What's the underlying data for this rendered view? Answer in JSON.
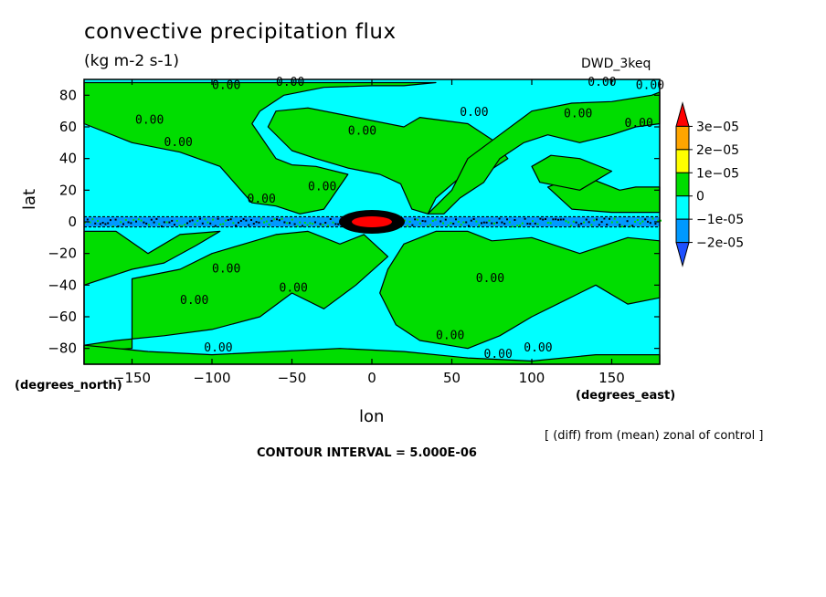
{
  "chart_data": {
    "type": "heatmap",
    "title": "convective precipitation flux",
    "units": "(kg m-2 s-1)",
    "run_label": "DWD_3keq",
    "xlabel": "lon",
    "ylabel": "lat",
    "x_units_label": "(degrees_east)",
    "y_units_label": "(degrees_north)",
    "xlim": [
      -180,
      180
    ],
    "ylim": [
      -90,
      90
    ],
    "x_ticks": [
      -150,
      -100,
      -50,
      0,
      50,
      100,
      150
    ],
    "y_ticks": [
      -80,
      -60,
      -40,
      -20,
      0,
      20,
      40,
      60,
      80
    ],
    "note": "[ (diff) from (mean) zonal of control ]",
    "contour_interval_text": "CONTOUR INTERVAL = 5.000E-06",
    "colorbar": {
      "labels": [
        "3e-05",
        "2e-05",
        "1e-05",
        "0",
        "-1e-05",
        "-2e-05"
      ],
      "colors": [
        "#ff0000",
        "#ffa500",
        "#ffff00",
        "#00dd00",
        "#00ffff",
        "#0099ff",
        "#1e50ff"
      ]
    },
    "contour_label": "0.00",
    "regions": [
      {
        "sign": "positive",
        "description": "equatorial maximum",
        "lon": [
          -15,
          18
        ],
        "lat": [
          -4,
          4
        ],
        "value_band": ">3e-05"
      },
      {
        "sign": "positive",
        "lon_range": [
          -180,
          180
        ],
        "lat_range": [
          -90,
          90
        ]
      }
    ]
  }
}
